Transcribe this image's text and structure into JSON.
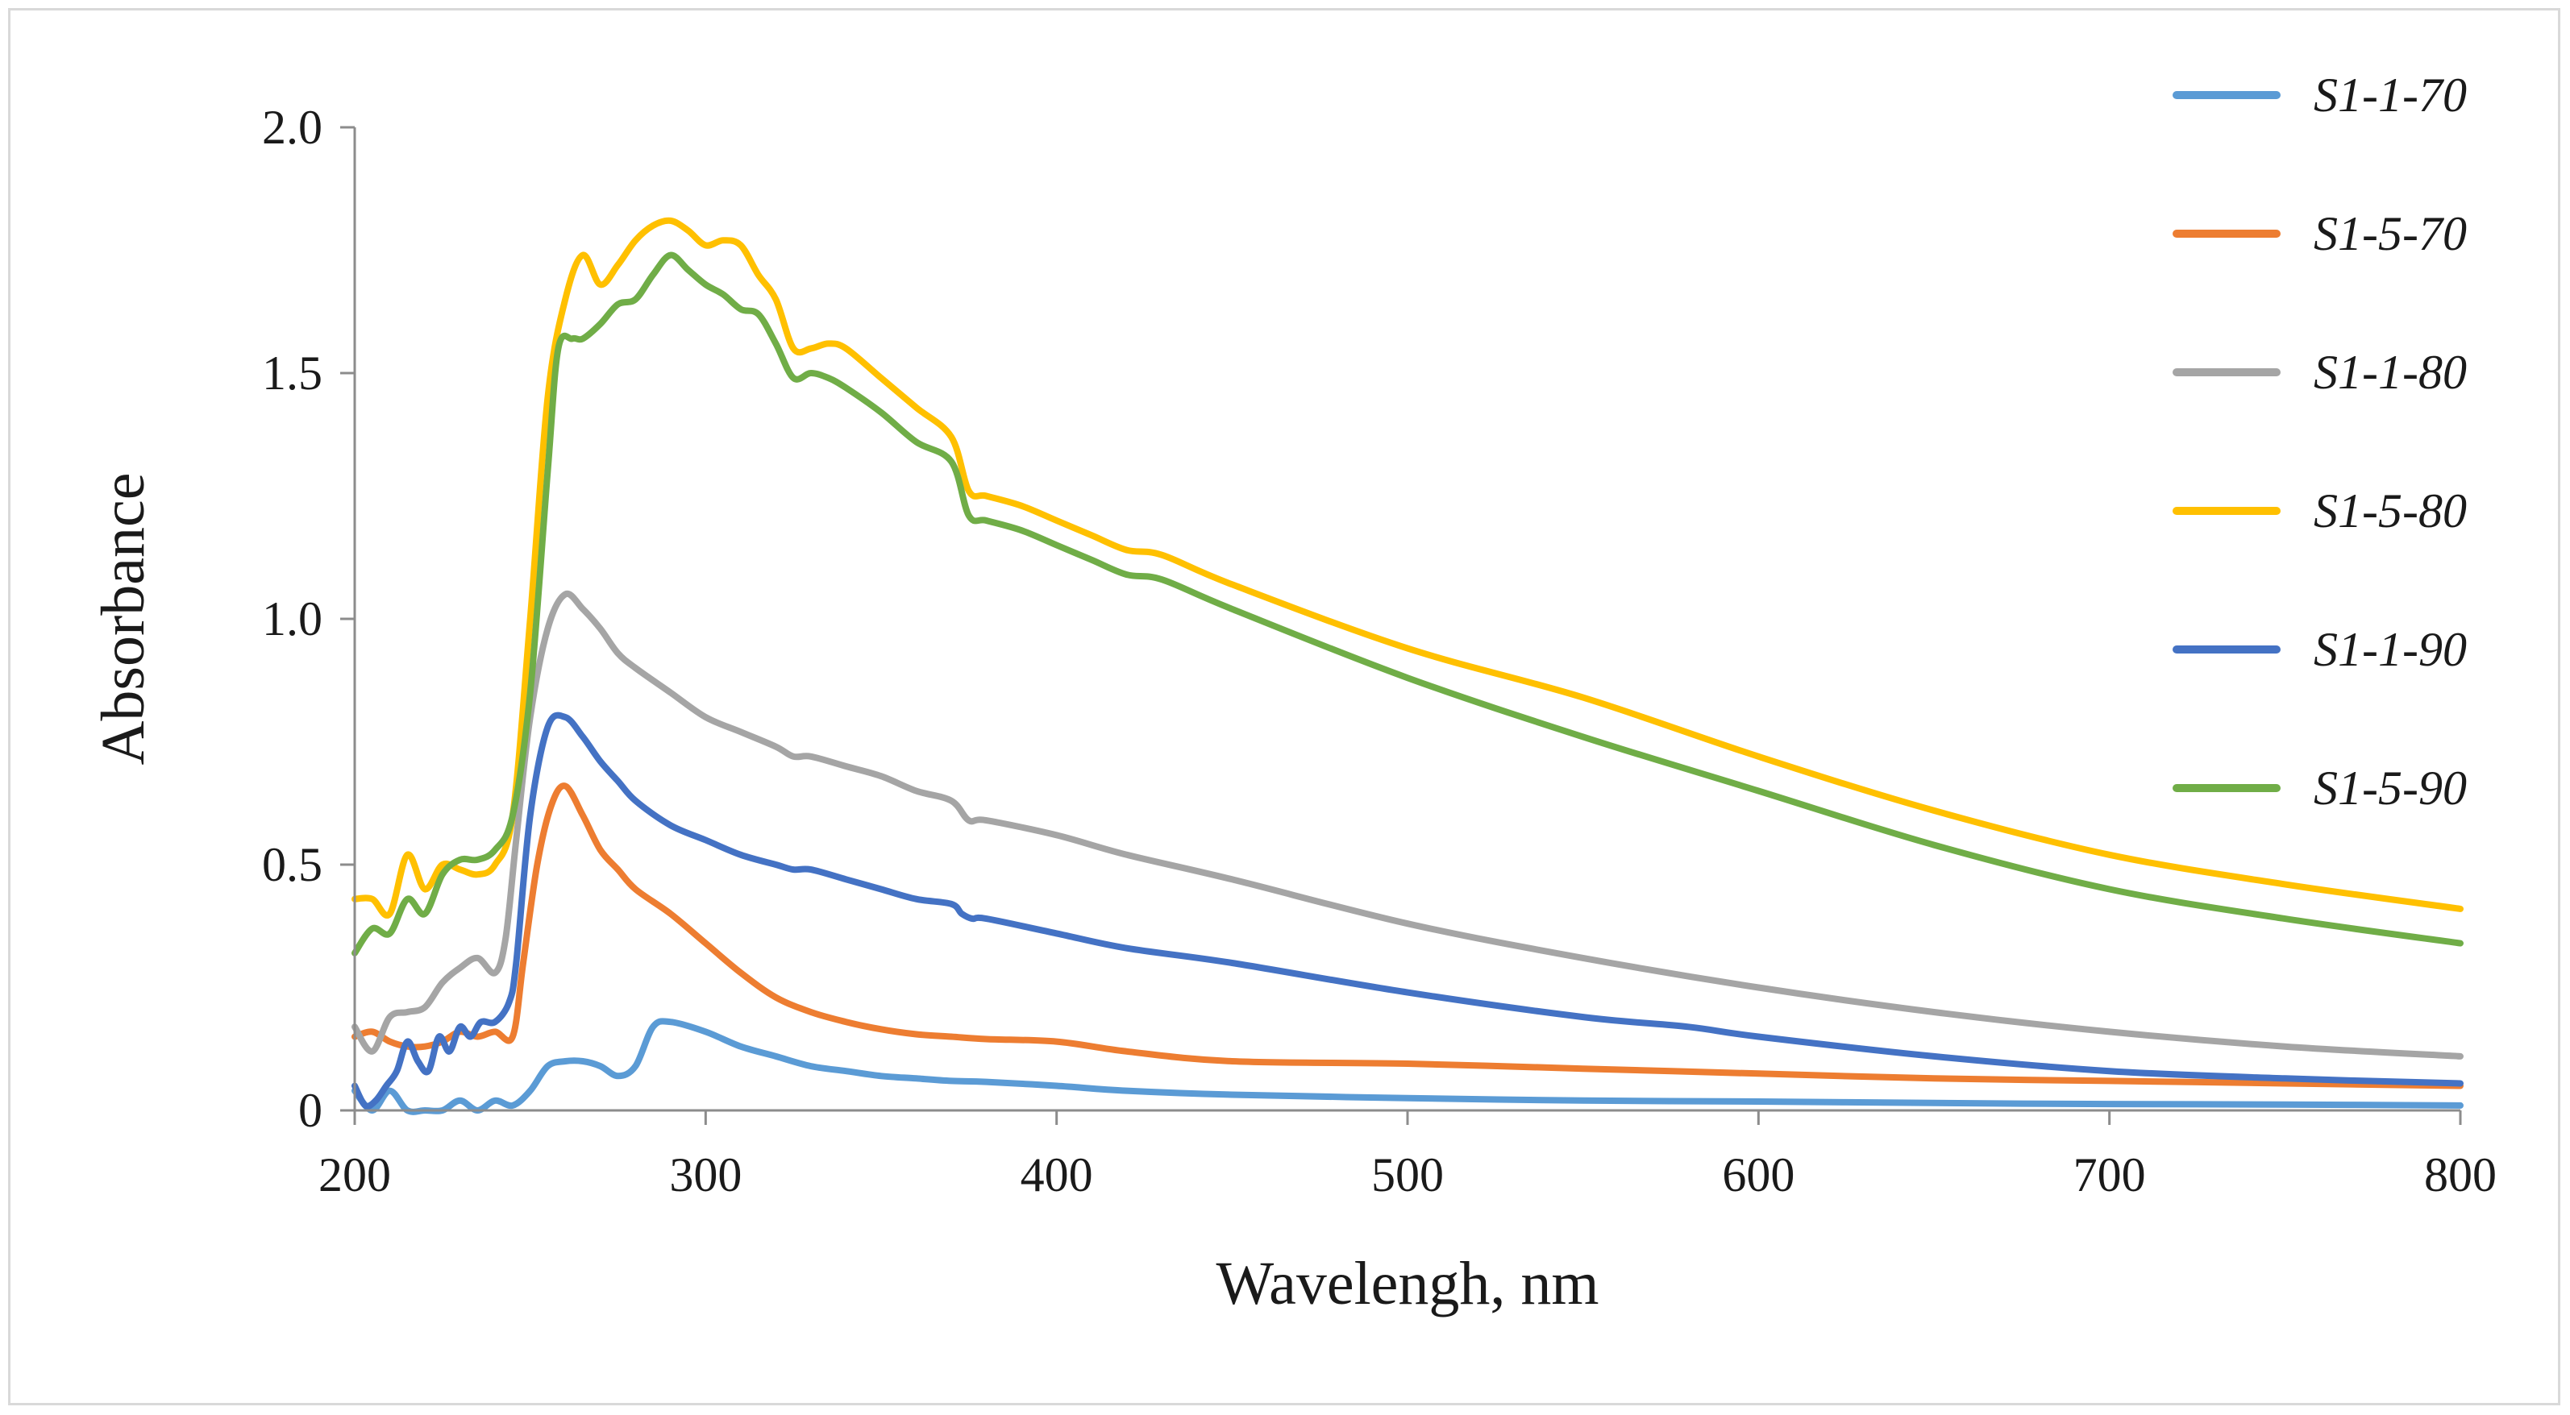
{
  "chart_data": {
    "type": "line",
    "xlabel": "Wavelengh, nm",
    "ylabel": "Absorbance",
    "xlim": [
      200,
      800
    ],
    "ylim": [
      0,
      2.0
    ],
    "xticks": [
      "200",
      "300",
      "400",
      "500",
      "600",
      "700",
      "800"
    ],
    "yticks": [
      "0",
      "0.5",
      "1.0",
      "1.5",
      "2.0"
    ],
    "grid": false,
    "legend_position": "right",
    "series": [
      {
        "name": "S1-1-70",
        "color": "#5b9bd5",
        "x": [
          200,
          205,
          210,
          215,
          220,
          225,
          230,
          235,
          240,
          245,
          250,
          255,
          260,
          265,
          270,
          275,
          280,
          285,
          290,
          300,
          310,
          320,
          330,
          340,
          350,
          360,
          370,
          380,
          400,
          420,
          450,
          500,
          550,
          600,
          650,
          700,
          750,
          800
        ],
        "y": [
          0.04,
          0.0,
          0.04,
          0.0,
          0.0,
          0.0,
          0.02,
          0.0,
          0.02,
          0.01,
          0.04,
          0.09,
          0.1,
          0.1,
          0.09,
          0.07,
          0.09,
          0.17,
          0.18,
          0.16,
          0.13,
          0.11,
          0.09,
          0.08,
          0.07,
          0.065,
          0.06,
          0.058,
          0.05,
          0.04,
          0.032,
          0.025,
          0.02,
          0.018,
          0.015,
          0.013,
          0.012,
          0.01
        ]
      },
      {
        "name": "S1-5-70",
        "color": "#ed7d31",
        "x": [
          200,
          205,
          210,
          215,
          220,
          225,
          230,
          235,
          240,
          245,
          248,
          252,
          256,
          260,
          265,
          270,
          275,
          280,
          290,
          300,
          310,
          320,
          330,
          340,
          350,
          360,
          370,
          380,
          400,
          420,
          450,
          500,
          550,
          600,
          650,
          700,
          750,
          800
        ],
        "y": [
          0.15,
          0.16,
          0.14,
          0.13,
          0.13,
          0.14,
          0.16,
          0.15,
          0.16,
          0.15,
          0.3,
          0.5,
          0.62,
          0.66,
          0.6,
          0.53,
          0.49,
          0.45,
          0.4,
          0.34,
          0.28,
          0.23,
          0.2,
          0.18,
          0.165,
          0.155,
          0.15,
          0.145,
          0.14,
          0.12,
          0.1,
          0.095,
          0.085,
          0.075,
          0.065,
          0.06,
          0.055,
          0.05
        ]
      },
      {
        "name": "S1-1-80",
        "color": "#a5a5a5",
        "x": [
          200,
          205,
          210,
          215,
          220,
          225,
          230,
          235,
          240,
          243,
          246,
          250,
          255,
          260,
          265,
          270,
          275,
          280,
          290,
          300,
          310,
          320,
          325,
          330,
          340,
          350,
          360,
          370,
          375,
          380,
          400,
          420,
          450,
          500,
          550,
          600,
          650,
          700,
          750,
          800
        ],
        "y": [
          0.17,
          0.12,
          0.19,
          0.2,
          0.21,
          0.26,
          0.29,
          0.31,
          0.28,
          0.35,
          0.55,
          0.8,
          0.98,
          1.05,
          1.02,
          0.98,
          0.93,
          0.9,
          0.85,
          0.8,
          0.77,
          0.74,
          0.72,
          0.72,
          0.7,
          0.68,
          0.65,
          0.63,
          0.59,
          0.59,
          0.56,
          0.52,
          0.47,
          0.38,
          0.31,
          0.25,
          0.2,
          0.16,
          0.13,
          0.11
        ]
      },
      {
        "name": "S1-5-80",
        "color": "#ffc000",
        "x": [
          200,
          205,
          210,
          215,
          220,
          225,
          230,
          235,
          240,
          245,
          250,
          255,
          260,
          265,
          270,
          275,
          280,
          285,
          290,
          295,
          300,
          305,
          310,
          315,
          320,
          325,
          330,
          335,
          340,
          350,
          360,
          370,
          375,
          380,
          390,
          400,
          410,
          420,
          430,
          450,
          500,
          550,
          600,
          650,
          700,
          750,
          800
        ],
        "y": [
          0.43,
          0.43,
          0.4,
          0.52,
          0.45,
          0.5,
          0.49,
          0.48,
          0.5,
          0.6,
          1.0,
          1.45,
          1.65,
          1.74,
          1.68,
          1.72,
          1.77,
          1.8,
          1.81,
          1.79,
          1.76,
          1.77,
          1.76,
          1.7,
          1.65,
          1.55,
          1.55,
          1.56,
          1.55,
          1.49,
          1.43,
          1.37,
          1.26,
          1.25,
          1.23,
          1.2,
          1.17,
          1.14,
          1.13,
          1.07,
          0.94,
          0.84,
          0.72,
          0.61,
          0.52,
          0.46,
          0.41
        ]
      },
      {
        "name": "S1-1-90",
        "color": "#4472c4",
        "x": [
          200,
          203,
          206,
          209,
          212,
          215,
          218,
          221,
          224,
          227,
          230,
          233,
          236,
          240,
          244,
          246,
          250,
          255,
          260,
          265,
          270,
          275,
          280,
          290,
          300,
          310,
          320,
          325,
          330,
          340,
          350,
          360,
          370,
          373,
          376,
          380,
          400,
          420,
          450,
          500,
          550,
          580,
          600,
          650,
          700,
          750,
          800
        ],
        "y": [
          0.05,
          0.01,
          0.02,
          0.05,
          0.08,
          0.14,
          0.1,
          0.08,
          0.15,
          0.12,
          0.17,
          0.15,
          0.18,
          0.18,
          0.22,
          0.3,
          0.6,
          0.78,
          0.8,
          0.76,
          0.71,
          0.67,
          0.63,
          0.58,
          0.55,
          0.52,
          0.5,
          0.49,
          0.49,
          0.47,
          0.45,
          0.43,
          0.42,
          0.4,
          0.39,
          0.39,
          0.36,
          0.33,
          0.3,
          0.24,
          0.19,
          0.17,
          0.15,
          0.11,
          0.08,
          0.065,
          0.055
        ]
      },
      {
        "name": "S1-5-90",
        "color": "#70ad47",
        "x": [
          200,
          205,
          210,
          215,
          220,
          225,
          230,
          235,
          240,
          245,
          250,
          255,
          258,
          262,
          265,
          270,
          275,
          280,
          285,
          290,
          295,
          300,
          305,
          310,
          315,
          320,
          325,
          330,
          335,
          340,
          350,
          360,
          370,
          375,
          380,
          390,
          400,
          410,
          420,
          430,
          450,
          500,
          550,
          600,
          650,
          700,
          750,
          800
        ],
        "y": [
          0.32,
          0.37,
          0.36,
          0.43,
          0.4,
          0.48,
          0.51,
          0.51,
          0.53,
          0.6,
          0.85,
          1.3,
          1.55,
          1.57,
          1.57,
          1.6,
          1.64,
          1.65,
          1.7,
          1.74,
          1.71,
          1.68,
          1.66,
          1.63,
          1.62,
          1.56,
          1.49,
          1.5,
          1.49,
          1.47,
          1.42,
          1.36,
          1.32,
          1.21,
          1.2,
          1.18,
          1.15,
          1.12,
          1.09,
          1.08,
          1.02,
          0.88,
          0.76,
          0.65,
          0.54,
          0.45,
          0.39,
          0.34
        ]
      }
    ]
  }
}
